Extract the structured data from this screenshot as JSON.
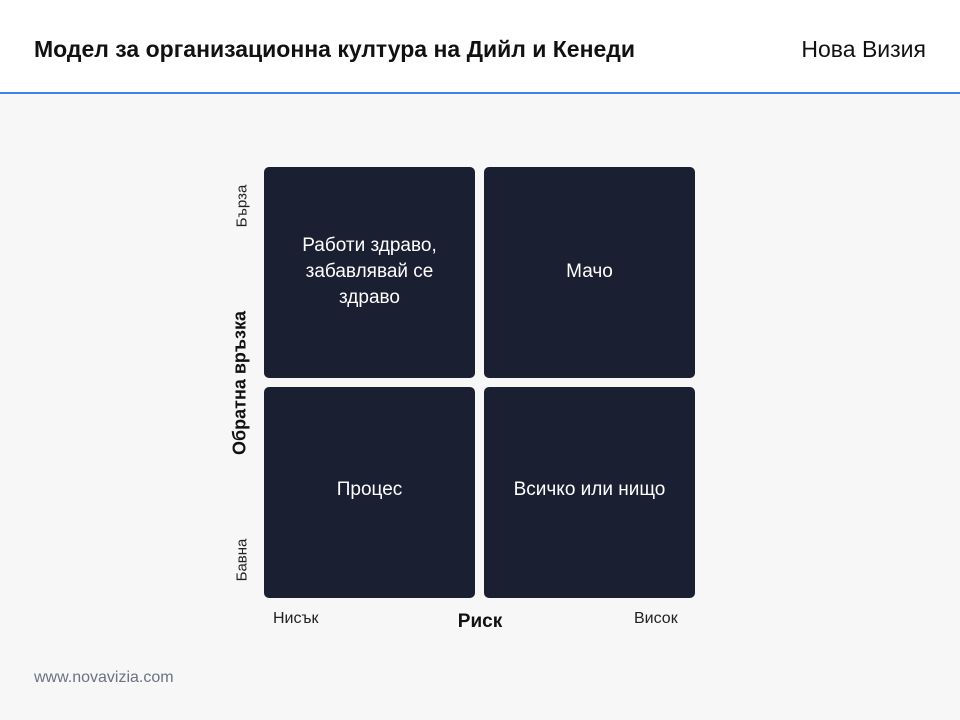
{
  "header": {
    "title": "Модел за организационна култура на Дийл и Кенеди",
    "brand": "Нова Визия",
    "accent_color": "#3b82f6"
  },
  "matrix": {
    "quadrant_color": "#1a1f31",
    "quadrants": {
      "top_left": "Работи здраво,\nзабавлявай се\nздраво",
      "top_right": "Мачо",
      "bottom_left": "Процес",
      "bottom_right": "Всичко или нищо"
    },
    "y_axis": {
      "label": "Обратна връзка",
      "high": "Бърза",
      "low": "Бавна"
    },
    "x_axis": {
      "label": "Риск",
      "low": "Нисък",
      "high": "Висок"
    }
  },
  "footer": {
    "url": "www.novavizia.com"
  }
}
